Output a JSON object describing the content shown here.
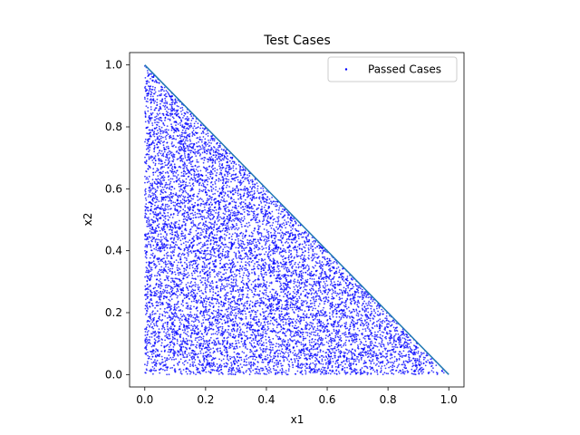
{
  "chart_data": {
    "type": "scatter",
    "title": "Test Cases",
    "xlabel": "x1",
    "ylabel": "x2",
    "xlim": [
      -0.05,
      1.05
    ],
    "ylim": [
      -0.04,
      1.04
    ],
    "xticks": [
      0.0,
      0.2,
      0.4,
      0.6,
      0.8,
      1.0
    ],
    "xtick_labels": [
      "0.0",
      "0.2",
      "0.4",
      "0.6",
      "0.8",
      "1.0"
    ],
    "yticks": [
      0.0,
      0.2,
      0.4,
      0.6,
      0.8,
      1.0
    ],
    "ytick_labels": [
      "0.0",
      "0.2",
      "0.4",
      "0.6",
      "0.8",
      "1.0"
    ],
    "grid": false,
    "legend_position": "top-right",
    "series": [
      {
        "name": "Passed Cases",
        "kind": "scatter",
        "color": "#0000ff",
        "region": "x1 >= 0, x2 >= 0, x1 + x2 <= 1",
        "approx_point_count": 9000
      },
      {
        "kind": "line",
        "color": "#1f77b4",
        "x": [
          0.0,
          1.0
        ],
        "y": [
          1.0,
          0.0
        ]
      }
    ]
  }
}
